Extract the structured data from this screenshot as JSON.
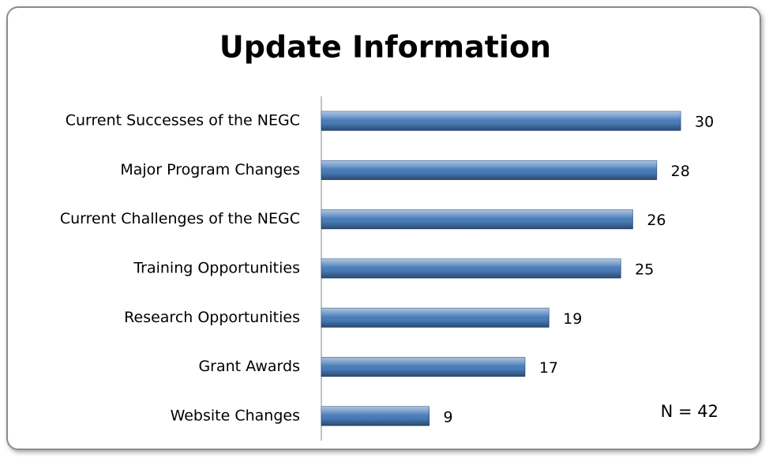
{
  "chart_data": {
    "type": "hbar",
    "title": "Update Information",
    "categories": [
      "Current Successes of the NEGC",
      "Major Program Changes",
      "Current Challenges of the NEGC",
      "Training Opportunities",
      "Research Opportunities",
      "Grant Awards",
      "Website Changes"
    ],
    "values": [
      30,
      28,
      26,
      25,
      19,
      17,
      9
    ],
    "color": "#4a7ebb",
    "annotation": "N = 42"
  }
}
